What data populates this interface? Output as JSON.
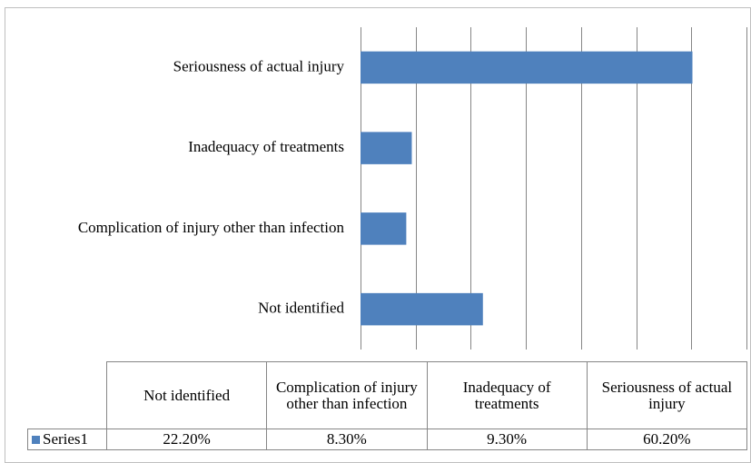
{
  "chart_data": {
    "type": "bar",
    "orientation": "horizontal",
    "categories": [
      "Not identified",
      "Complication of injury other than infection",
      "Inadequacy of treatments",
      "Seriousness of actual injury"
    ],
    "series": [
      {
        "name": "Series1",
        "color": "#4f81bd",
        "values": [
          22.2,
          8.3,
          9.3,
          60.2
        ],
        "value_labels": [
          "22.20%",
          "8.30%",
          "9.30%",
          "60.20%"
        ]
      }
    ],
    "xlim": [
      0,
      70
    ],
    "xticks": [
      0,
      10,
      20,
      30,
      40,
      50,
      60,
      70
    ],
    "grid": true,
    "data_table": true
  }
}
